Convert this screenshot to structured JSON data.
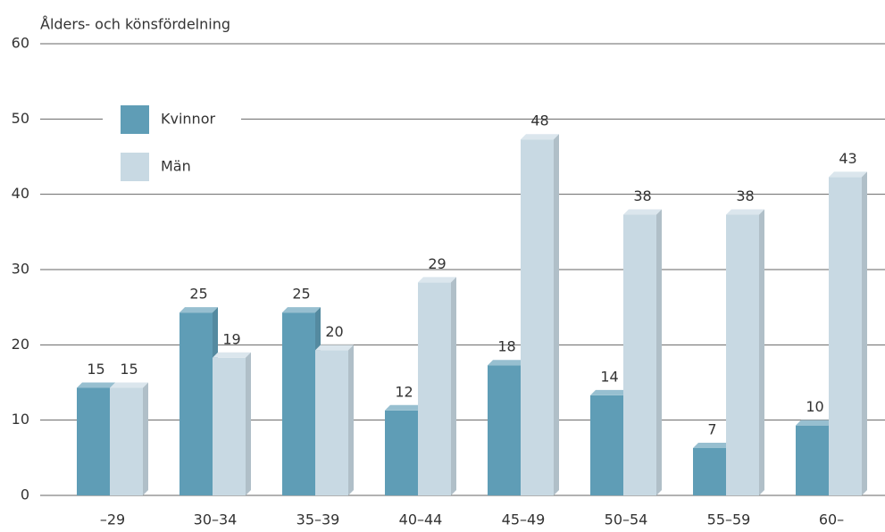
{
  "chart_data": {
    "type": "bar3d",
    "title": "Ålders- och könsfördelning",
    "categories": [
      "–29",
      "30–34",
      "35–39",
      "40–44",
      "45–49",
      "50–54",
      "55–59",
      "60–"
    ],
    "series": [
      {
        "name": "Kvinnor",
        "color": "#5f9db6",
        "values": [
          15,
          25,
          25,
          12,
          18,
          14,
          7,
          10
        ]
      },
      {
        "name": "Män",
        "color": "#c8d9e3",
        "values": [
          15,
          19,
          20,
          29,
          48,
          38,
          38,
          43
        ]
      }
    ],
    "ylim": [
      0,
      60
    ],
    "yticks": [
      0,
      10,
      20,
      30,
      40,
      50,
      60
    ],
    "grid": true,
    "legend": "upper left"
  }
}
